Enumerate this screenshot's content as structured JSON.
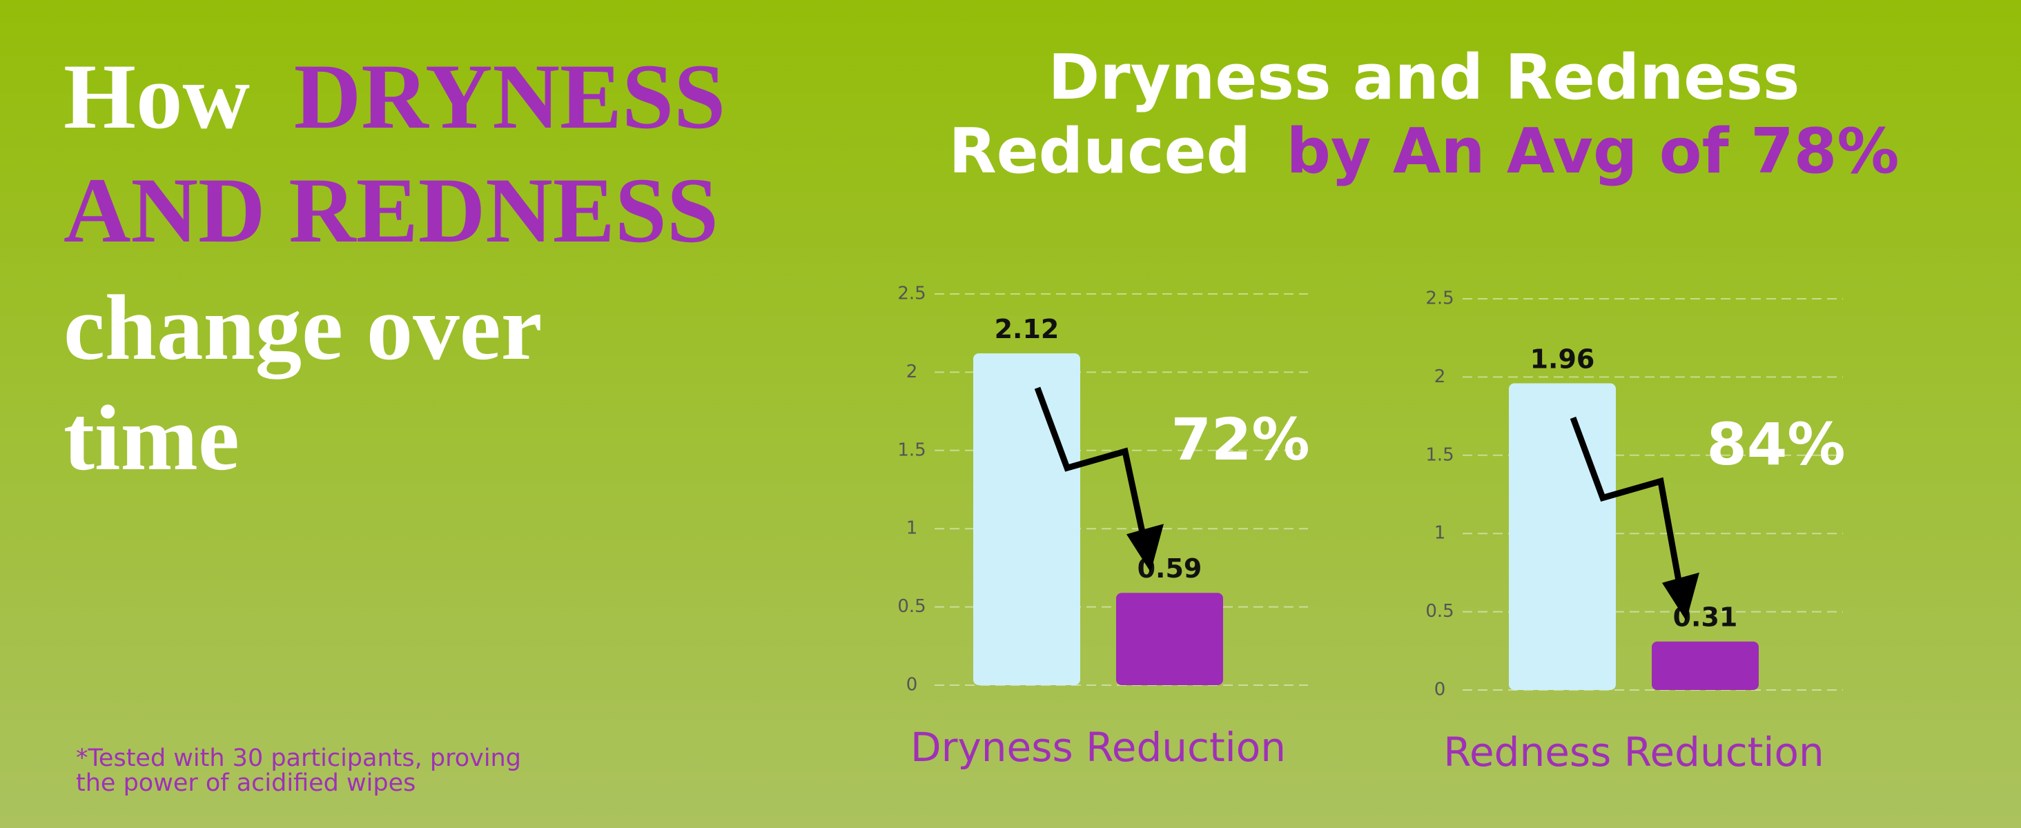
{
  "headline": [
    "How",
    "DRYNESS",
    "AND REDNESS",
    "change over",
    "time"
  ],
  "heading": [
    "Dryness and Redness",
    "Reduced",
    "by An Avg of 78%"
  ],
  "footnote": [
    "*Tested with 30 participants, proving",
    "the power of acidified wipes"
  ],
  "chart_data": [
    {
      "type": "bar",
      "xlabel": "Dryness Reduction",
      "categories": [
        null,
        null
      ],
      "values": [
        2.12,
        0.59
      ],
      "colors": [
        "#cdf0fb",
        "#9c2bb8"
      ],
      "ylim": [
        0,
        2.5
      ],
      "yticks": [
        0,
        0.5,
        1,
        1.5,
        2,
        2.5
      ],
      "grid": true,
      "annotation": "72%"
    },
    {
      "type": "bar",
      "xlabel": "Redness Reduction",
      "categories": [
        null,
        null
      ],
      "values": [
        1.96,
        0.31
      ],
      "colors": [
        "#cdf0fb",
        "#9c2bb8"
      ],
      "ylim": [
        0,
        2.5
      ],
      "yticks": [
        0,
        0.5,
        1,
        1.5,
        2,
        2.5
      ],
      "grid": true,
      "annotation": "84%"
    }
  ]
}
